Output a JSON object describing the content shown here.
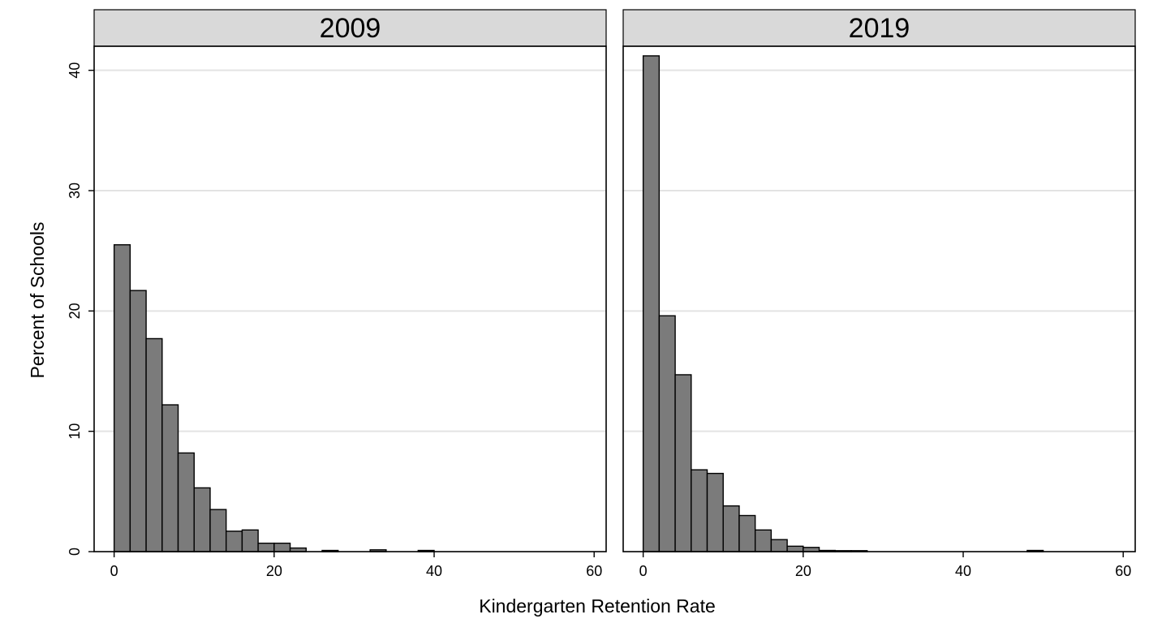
{
  "chart_data": {
    "type": "bar",
    "subtype": "histogram-faceted",
    "xlabel": "Kindergarten Retention Rate",
    "ylabel": "Percent of Schools",
    "xlim": [
      -2.5,
      61.5
    ],
    "ylim": [
      0,
      42
    ],
    "x_ticks": [
      0,
      20,
      40,
      60
    ],
    "y_ticks": [
      0,
      10,
      20,
      30,
      40
    ],
    "y_grid": true,
    "bin_width": 2,
    "colors": {
      "bar_fill": "#7b7b7b",
      "bar_stroke": "#000000",
      "strip_fill": "#d9d9d9",
      "grid": "#e3e3e3"
    },
    "panels": [
      {
        "title": "2009",
        "bin_starts": [
          0,
          2,
          4,
          6,
          8,
          10,
          12,
          14,
          16,
          18,
          20,
          22,
          26,
          32,
          38
        ],
        "values": [
          25.5,
          21.7,
          17.7,
          12.2,
          8.2,
          5.3,
          3.5,
          1.7,
          1.8,
          0.7,
          0.7,
          0.3,
          0.1,
          0.15,
          0.1
        ]
      },
      {
        "title": "2019",
        "bin_starts": [
          0,
          2,
          4,
          6,
          8,
          10,
          12,
          14,
          16,
          18,
          20,
          22,
          24,
          26,
          48
        ],
        "values": [
          41.2,
          19.6,
          14.7,
          6.8,
          6.5,
          3.8,
          3.0,
          1.8,
          1.0,
          0.45,
          0.35,
          0.1,
          0.08,
          0.08,
          0.1
        ]
      }
    ]
  }
}
